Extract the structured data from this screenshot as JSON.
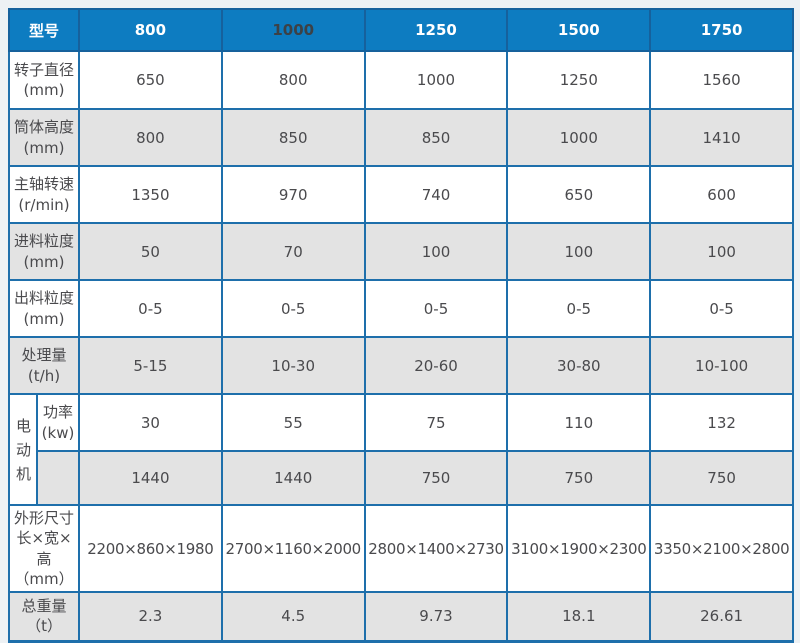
{
  "colors": {
    "header_bg": "#0d7cc1",
    "grid_border": "#1e6fab",
    "shade_row_bg": "#e3e3e3",
    "white_row_bg": "#ffffff",
    "header_text": "#ffffff",
    "header_text_dark": "#3c4146",
    "body_text": "#4a4a4d",
    "page_bg": "#edf1f4"
  },
  "table": {
    "header": {
      "label": "型号",
      "models": [
        "800",
        "1000",
        "1250",
        "1500",
        "1750"
      ]
    },
    "rows": [
      {
        "label": "转子直径",
        "unit": "(mm)",
        "values": [
          "650",
          "800",
          "1000",
          "1250",
          "1560"
        ]
      },
      {
        "label": "筒体高度",
        "unit": "(mm)",
        "values": [
          "800",
          "850",
          "850",
          "1000",
          "1410"
        ]
      },
      {
        "label": "主轴转速",
        "unit": "(r/min)",
        "values": [
          "1350",
          "970",
          "740",
          "650",
          "600"
        ]
      },
      {
        "label": "进料粒度",
        "unit": "(mm)",
        "values": [
          "50",
          "70",
          "100",
          "100",
          "100"
        ]
      },
      {
        "label": "出料粒度",
        "unit": "(mm)",
        "values": [
          "0-5",
          "0-5",
          "0-5",
          "0-5",
          "0-5"
        ]
      },
      {
        "label": "处理量",
        "unit": "(t/h)",
        "values": [
          "5-15",
          "10-30",
          "20-60",
          "30-80",
          "10-100"
        ]
      }
    ],
    "motor": {
      "group_label": "电动机",
      "power": {
        "label": "功率",
        "unit": "(kw)",
        "values": [
          "30",
          "55",
          "75",
          "110",
          "132"
        ]
      },
      "speed": {
        "label": "",
        "values": [
          "1440",
          "1440",
          "750",
          "750",
          "750"
        ]
      }
    },
    "dimensions": {
      "label_line1": "外形尺寸",
      "label_line2": "长×宽×高",
      "label_line3": "（mm）",
      "values": [
        "2200×860×1980",
        "2700×1160×2000",
        "2800×1400×2730",
        "3100×1900×2300",
        "3350×2100×2800"
      ]
    },
    "weight": {
      "label": "总重量",
      "unit": "（t）",
      "values": [
        "2.3",
        "4.5",
        "9.73",
        "18.1",
        "26.61"
      ]
    }
  }
}
